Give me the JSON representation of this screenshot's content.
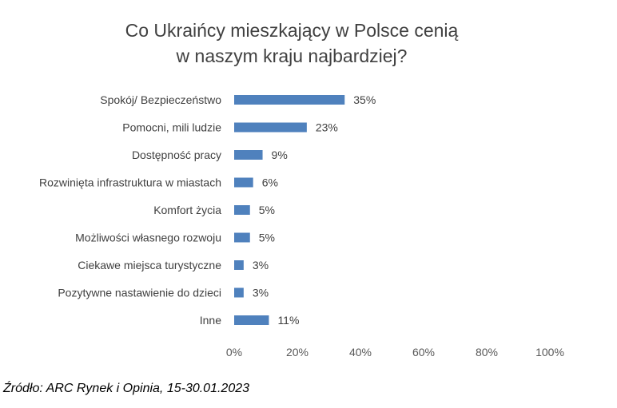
{
  "chart_data": {
    "type": "bar",
    "orientation": "horizontal",
    "title_lines": [
      "Co Ukraińcy mieszkający w Polsce cenią",
      "w naszym kraju najbardziej?"
    ],
    "categories": [
      "Spokój/ Bezpieczeństwo",
      "Pomocni, mili ludzie",
      "Dostępność pracy",
      "Rozwinięta infrastruktura w miastach",
      "Komfort życia",
      "Możliwości własnego rozwoju",
      "Ciekawe miejsca turystyczne",
      "Pozytywne nastawienie do dzieci",
      "Inne"
    ],
    "values": [
      35,
      23,
      9,
      6,
      5,
      5,
      3,
      3,
      11
    ],
    "value_labels": [
      "35%",
      "23%",
      "9%",
      "6%",
      "5%",
      "5%",
      "3%",
      "3%",
      "11%"
    ],
    "x_ticks": [
      "0%",
      "20%",
      "40%",
      "60%",
      "80%",
      "100%"
    ],
    "xlim": [
      0,
      100
    ],
    "grid": false,
    "legend": "none",
    "bar_color": "#4f81bd"
  },
  "source": "Źródło: ARC Rynek i Opinia, 15-30.01.2023"
}
